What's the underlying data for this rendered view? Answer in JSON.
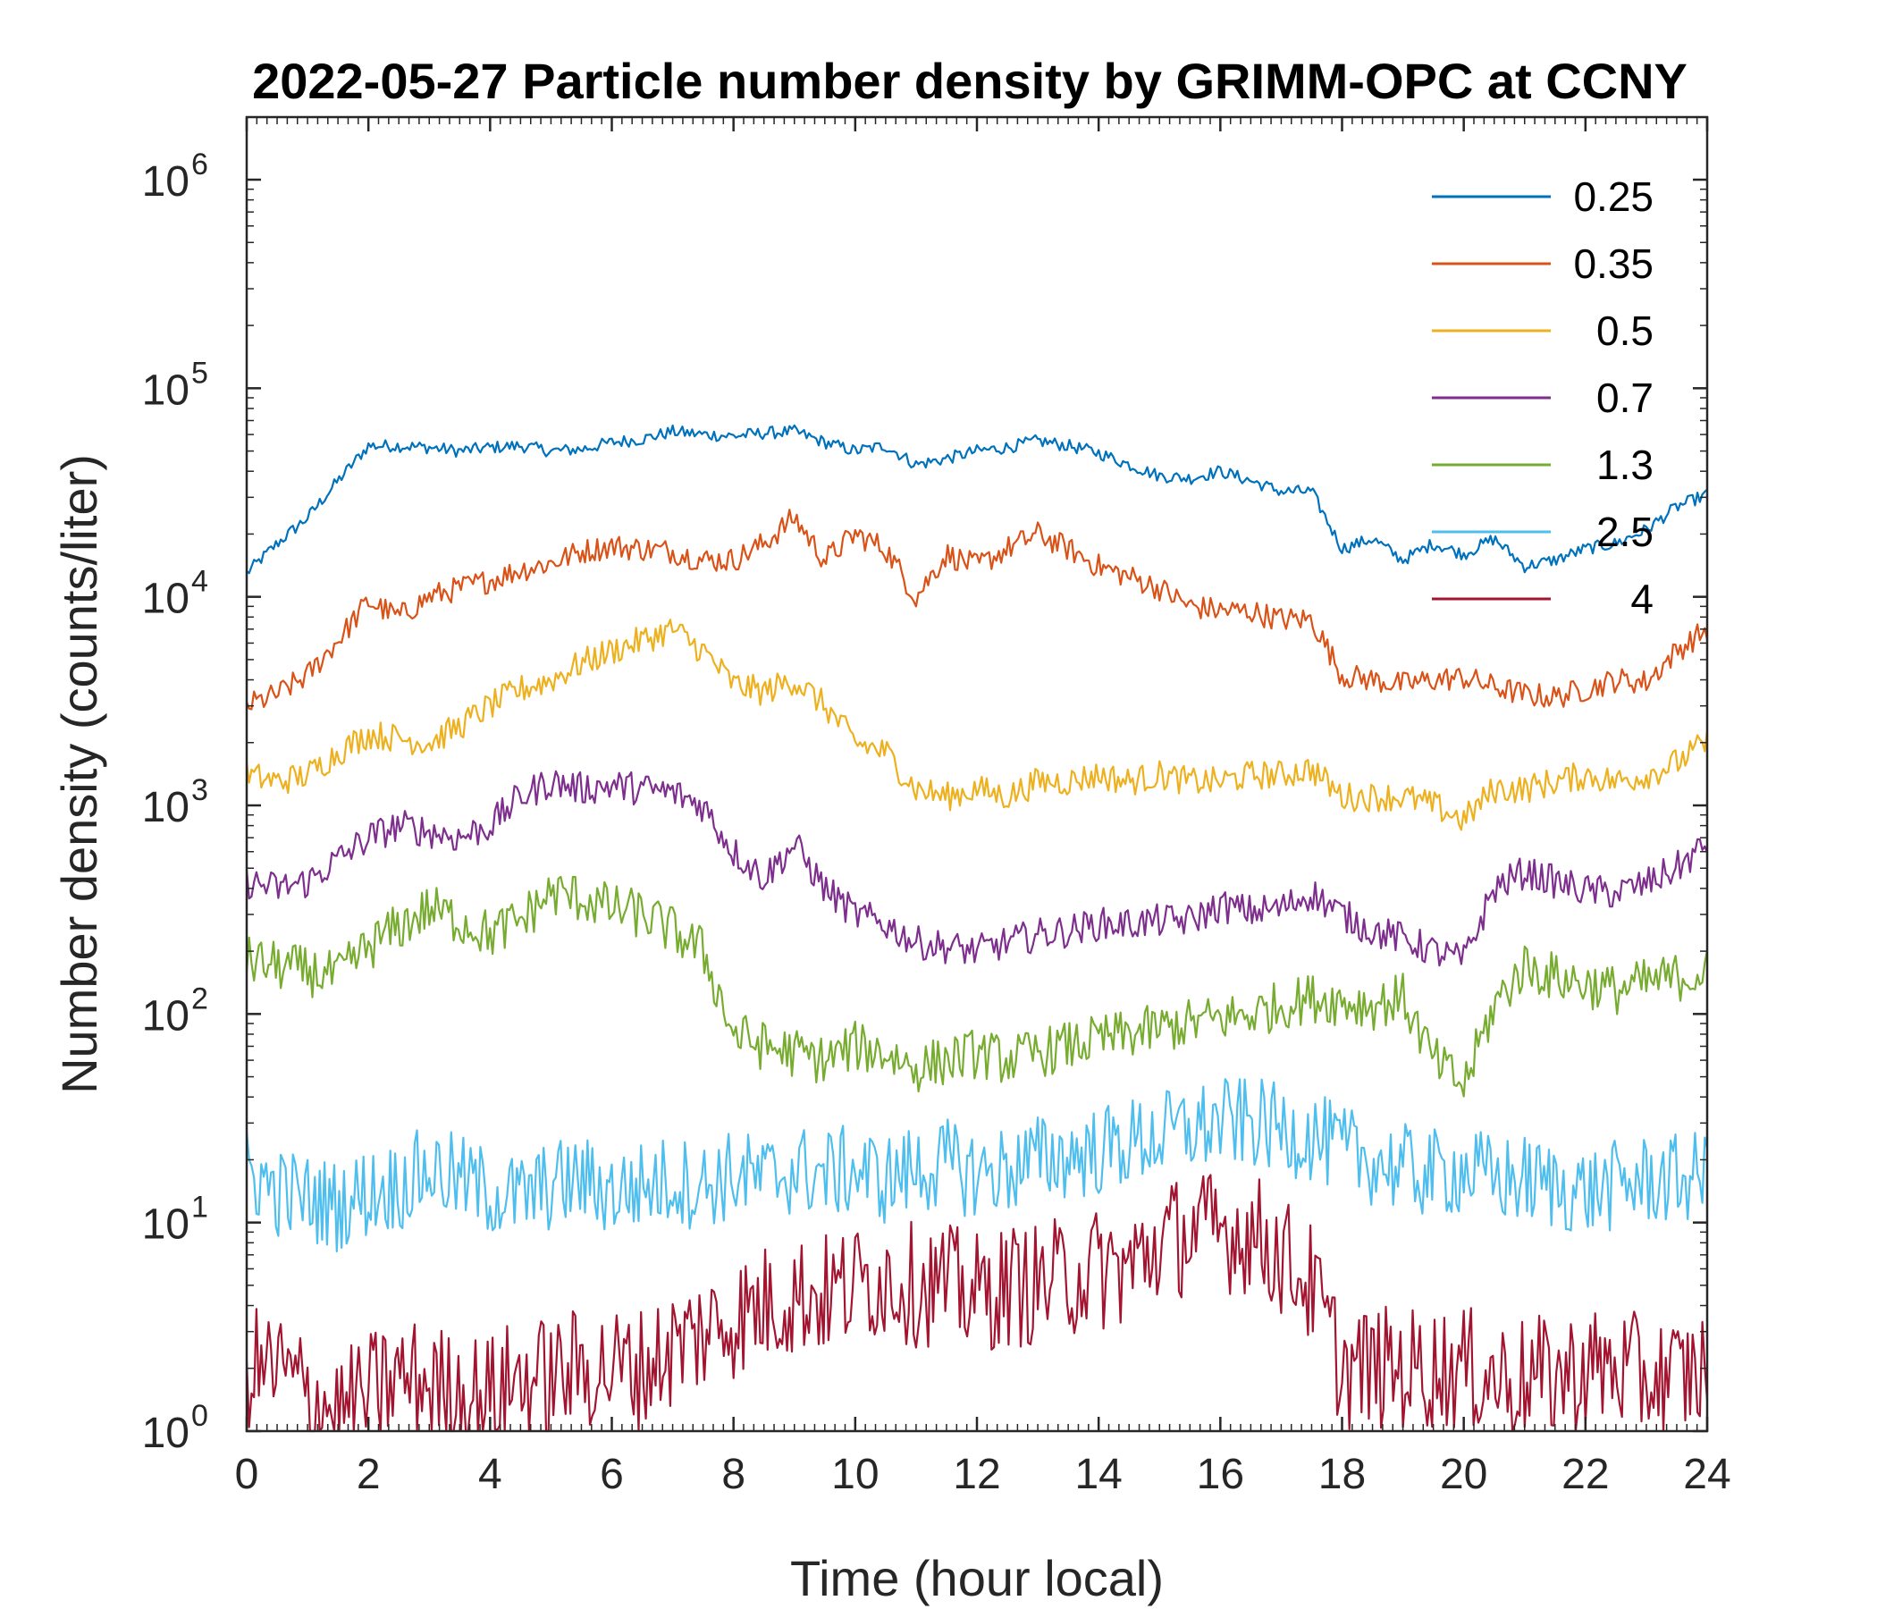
{
  "chart_data": {
    "type": "line",
    "title": "2022-05-27 Particle number density by GRIMM-OPC at CCNY",
    "xlabel": "Time (hour local)",
    "ylabel": "Number density (counts/liter)",
    "xlim": [
      0,
      24
    ],
    "ylim_log10": [
      0,
      6.3
    ],
    "yscale": "log",
    "x_ticks": [
      0,
      2,
      4,
      6,
      8,
      10,
      12,
      14,
      16,
      18,
      20,
      22,
      24
    ],
    "x_tick_labels": [
      "0",
      "2",
      "4",
      "6",
      "8",
      "10",
      "12",
      "14",
      "16",
      "18",
      "20",
      "22",
      "24"
    ],
    "y_tick_exponents": [
      0,
      1,
      2,
      3,
      4,
      5,
      6
    ],
    "y_tick_base": "10",
    "y_tick_superscripts": [
      "0",
      "1",
      "2",
      "3",
      "4",
      "5",
      "6"
    ],
    "legend_position": "top-right",
    "series": [
      {
        "name": "0.25",
        "color": "#0072BD",
        "x": [
          0,
          0.5,
          1,
          1.5,
          2,
          2.5,
          3,
          3.5,
          4,
          4.5,
          5,
          5.5,
          6,
          6.5,
          7,
          7.5,
          8,
          8.5,
          9,
          9.5,
          10,
          10.5,
          11,
          11.5,
          12,
          12.5,
          13,
          13.5,
          14,
          14.5,
          15,
          15.5,
          16,
          16.5,
          17,
          17.5,
          18,
          18.5,
          19,
          19.5,
          20,
          20.5,
          21,
          21.5,
          22,
          22.5,
          23,
          23.5,
          24
        ],
        "y": [
          13000,
          18000,
          24000,
          36000,
          53000,
          53000,
          52000,
          50000,
          52000,
          53000,
          50000,
          51000,
          55000,
          57000,
          62000,
          60000,
          59000,
          61000,
          62000,
          55000,
          50000,
          53000,
          43000,
          46000,
          50000,
          52000,
          56000,
          53000,
          49000,
          43000,
          38000,
          37000,
          40000,
          36000,
          32000,
          32000,
          17000,
          19000,
          15000,
          18000,
          16000,
          19000,
          14000,
          15000,
          17000,
          18000,
          21000,
          27000,
          31000
        ]
      },
      {
        "name": "0.35",
        "color": "#D95319",
        "x": [
          0,
          0.5,
          1,
          1.5,
          2,
          2.5,
          3,
          3.5,
          4,
          4.5,
          5,
          5.5,
          6,
          6.5,
          7,
          7.5,
          8,
          8.5,
          9,
          9.5,
          10,
          10.5,
          11,
          11.5,
          12,
          12.5,
          13,
          13.5,
          14,
          14.5,
          15,
          15.5,
          16,
          16.5,
          17,
          17.5,
          18,
          18.5,
          19,
          19.5,
          20,
          20.5,
          21,
          21.5,
          22,
          22.5,
          23,
          23.5,
          24
        ],
        "y": [
          3000,
          3400,
          4200,
          6200,
          9500,
          8000,
          10000,
          11000,
          12000,
          13500,
          14500,
          16500,
          17500,
          17000,
          16500,
          15000,
          15000,
          18000,
          24000,
          15000,
          20000,
          17000,
          10000,
          16000,
          14000,
          17000,
          20000,
          17000,
          14000,
          12500,
          11000,
          9000,
          8600,
          8500,
          7800,
          7800,
          4200,
          4000,
          3800,
          4000,
          4100,
          3700,
          3400,
          3300,
          3600,
          4000,
          3900,
          5500,
          7000
        ]
      },
      {
        "name": "0.5",
        "color": "#EDB120",
        "x": [
          0,
          0.5,
          1,
          1.5,
          2,
          2.5,
          3,
          3.5,
          4,
          4.5,
          5,
          5.5,
          6,
          6.5,
          7,
          7.5,
          8,
          8.5,
          9,
          9.5,
          10,
          10.5,
          11,
          11.5,
          12,
          12.5,
          13,
          13.5,
          14,
          14.5,
          15,
          15.5,
          16,
          16.5,
          17,
          17.5,
          18,
          18.5,
          19,
          19.5,
          20,
          20.5,
          21,
          21.5,
          22,
          22.5,
          23,
          23.5,
          24
        ],
        "y": [
          1400,
          1300,
          1400,
          1800,
          2200,
          2100,
          2000,
          2400,
          3000,
          3600,
          4000,
          4800,
          5500,
          6200,
          7000,
          5500,
          3800,
          3500,
          4000,
          3000,
          2000,
          1800,
          1200,
          1100,
          1200,
          1100,
          1300,
          1300,
          1400,
          1300,
          1400,
          1300,
          1300,
          1400,
          1400,
          1500,
          1100,
          1100,
          1100,
          1000,
          850,
          1200,
          1200,
          1300,
          1400,
          1300,
          1400,
          1600,
          2000
        ]
      },
      {
        "name": "0.7",
        "color": "#7E2F8E",
        "x": [
          0,
          0.5,
          1,
          1.5,
          2,
          2.5,
          3,
          3.5,
          4,
          4.5,
          5,
          5.5,
          6,
          6.5,
          7,
          7.5,
          8,
          8.5,
          9,
          9.5,
          10,
          10.5,
          11,
          11.5,
          12,
          12.5,
          13,
          13.5,
          14,
          14.5,
          15,
          15.5,
          16,
          16.5,
          17,
          17.5,
          18,
          18.5,
          19,
          19.5,
          20,
          20.5,
          21,
          21.5,
          22,
          22.5,
          23,
          23.5,
          24
        ],
        "y": [
          430,
          400,
          430,
          550,
          700,
          800,
          750,
          700,
          800,
          1100,
          1300,
          1200,
          1250,
          1200,
          1150,
          1000,
          600,
          450,
          650,
          400,
          300,
          270,
          220,
          210,
          200,
          220,
          240,
          250,
          270,
          270,
          280,
          280,
          330,
          310,
          320,
          380,
          300,
          250,
          230,
          200,
          180,
          400,
          480,
          430,
          390,
          380,
          420,
          500,
          650
        ]
      },
      {
        "name": "1.3",
        "color": "#77AC30",
        "x": [
          0,
          0.5,
          1,
          1.5,
          2,
          2.5,
          3,
          3.5,
          4,
          4.5,
          5,
          5.5,
          6,
          6.5,
          7,
          7.5,
          8,
          8.5,
          9,
          9.5,
          10,
          10.5,
          11,
          11.5,
          12,
          12.5,
          13,
          13.5,
          14,
          14.5,
          15,
          15.5,
          16,
          16.5,
          17,
          17.5,
          18,
          18.5,
          19,
          19.5,
          20,
          20.5,
          21,
          21.5,
          22,
          22.5,
          23,
          23.5,
          24
        ],
        "y": [
          180,
          170,
          160,
          150,
          210,
          260,
          320,
          280,
          240,
          280,
          380,
          360,
          320,
          300,
          250,
          200,
          80,
          70,
          65,
          60,
          70,
          65,
          55,
          60,
          65,
          60,
          65,
          70,
          75,
          80,
          85,
          90,
          95,
          100,
          110,
          120,
          115,
          110,
          120,
          60,
          45,
          110,
          170,
          150,
          140,
          130,
          140,
          150,
          160
        ]
      },
      {
        "name": "2.5",
        "color": "#4DBEEE",
        "x": [
          0,
          0.5,
          1,
          1.5,
          2,
          2.5,
          3,
          3.5,
          4,
          4.5,
          5,
          5.5,
          6,
          6.5,
          7,
          7.5,
          8,
          8.5,
          9,
          9.5,
          10,
          10.5,
          11,
          11.5,
          12,
          12.5,
          13,
          13.5,
          14,
          14.5,
          15,
          15.5,
          16,
          16.5,
          17,
          17.5,
          18,
          18.5,
          19,
          19.5,
          20,
          20.5,
          21,
          21.5,
          22,
          22.5,
          23,
          23.5,
          24
        ],
        "y": [
          18,
          14,
          13,
          12,
          14,
          15,
          18,
          16,
          14,
          13,
          15,
          16,
          14,
          15,
          16,
          15,
          17,
          16,
          18,
          17,
          18,
          16,
          18,
          19,
          17,
          18,
          20,
          21,
          22,
          24,
          26,
          28,
          30,
          30,
          28,
          26,
          22,
          20,
          18,
          17,
          18,
          16,
          16,
          15,
          14,
          15,
          16,
          16,
          17
        ]
      },
      {
        "name": "4",
        "color": "#A2142F",
        "x": [
          0,
          0.5,
          1,
          1.5,
          2,
          2.5,
          3,
          3.5,
          4,
          4.5,
          5,
          5.5,
          6,
          6.5,
          7,
          7.5,
          8,
          8.5,
          9,
          9.5,
          10,
          10.5,
          11,
          11.5,
          12,
          12.5,
          13,
          13.5,
          14,
          14.5,
          15,
          15.5,
          16,
          16.5,
          17,
          17.5,
          18,
          18.5,
          19,
          19.5,
          20,
          20.5,
          21,
          21.5,
          22,
          22.5,
          23,
          23.5,
          24
        ],
        "y": [
          2,
          2,
          1.5,
          1.2,
          1.5,
          1.8,
          1.7,
          1.5,
          1.5,
          1.8,
          1.8,
          2,
          2,
          2,
          2.5,
          3,
          3.5,
          4,
          4.5,
          4.5,
          5,
          5.5,
          5,
          5,
          4.5,
          5,
          5,
          5.5,
          6,
          6,
          8,
          9,
          9,
          9,
          7,
          5,
          2,
          2,
          2,
          2,
          2,
          1.8,
          1.8,
          1.8,
          2,
          2,
          1.8,
          1.8,
          2
        ]
      }
    ]
  }
}
